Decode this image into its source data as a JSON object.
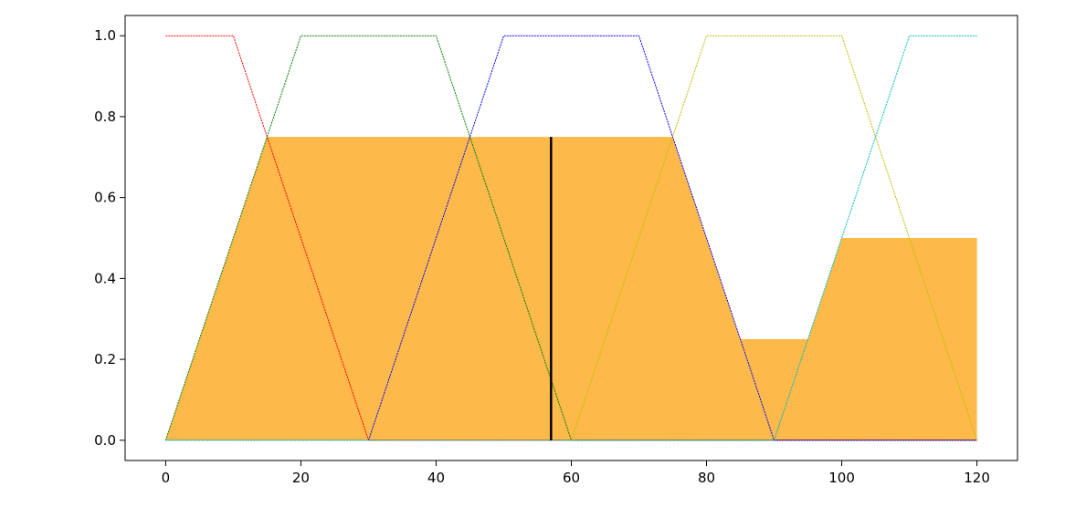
{
  "chart_data": {
    "type": "area",
    "title": "",
    "xlabel": "",
    "ylabel": "",
    "xlim": [
      -6,
      126
    ],
    "ylim": [
      -0.05,
      1.05
    ],
    "grid": false,
    "x_ticks": [
      0,
      20,
      40,
      60,
      80,
      100,
      120
    ],
    "y_ticks": [
      0.0,
      0.2,
      0.4,
      0.6,
      0.8,
      1.0
    ],
    "x_tick_labels": [
      "0",
      "20",
      "40",
      "60",
      "80",
      "100",
      "120"
    ],
    "y_tick_labels": [
      "0.0",
      "0.2",
      "0.4",
      "0.6",
      "0.8",
      "1.0"
    ],
    "aggregated_fill": {
      "color": "#fdb94a",
      "x": [
        0,
        15,
        75,
        85,
        85,
        95,
        95,
        100,
        100,
        120,
        120,
        0
      ],
      "y": [
        0,
        0.75,
        0.75,
        0.25,
        0.25,
        0.25,
        0.25,
        0.5,
        0.5,
        0.5,
        0,
        0
      ]
    },
    "centroid": {
      "x": 57,
      "y": 0.75,
      "color": "#000000"
    },
    "series": [
      {
        "color": "#ff0000",
        "x": [
          0,
          10,
          30,
          120
        ],
        "y": [
          1,
          1,
          0,
          0
        ]
      },
      {
        "color": "#008000",
        "x": [
          0,
          20,
          40,
          60,
          120
        ],
        "y": [
          0,
          1,
          1,
          0,
          0
        ]
      },
      {
        "color": "#0000ff",
        "x": [
          0,
          30,
          50,
          70,
          90,
          120
        ],
        "y": [
          0,
          0,
          1,
          1,
          0,
          0
        ]
      },
      {
        "color": "#bfbf00",
        "x": [
          0,
          60,
          80,
          100,
          120
        ],
        "y": [
          0,
          0,
          1,
          1,
          0
        ]
      },
      {
        "color": "#00bfbf",
        "x": [
          0,
          90,
          110,
          120
        ],
        "y": [
          0,
          0,
          1,
          1
        ]
      }
    ]
  }
}
